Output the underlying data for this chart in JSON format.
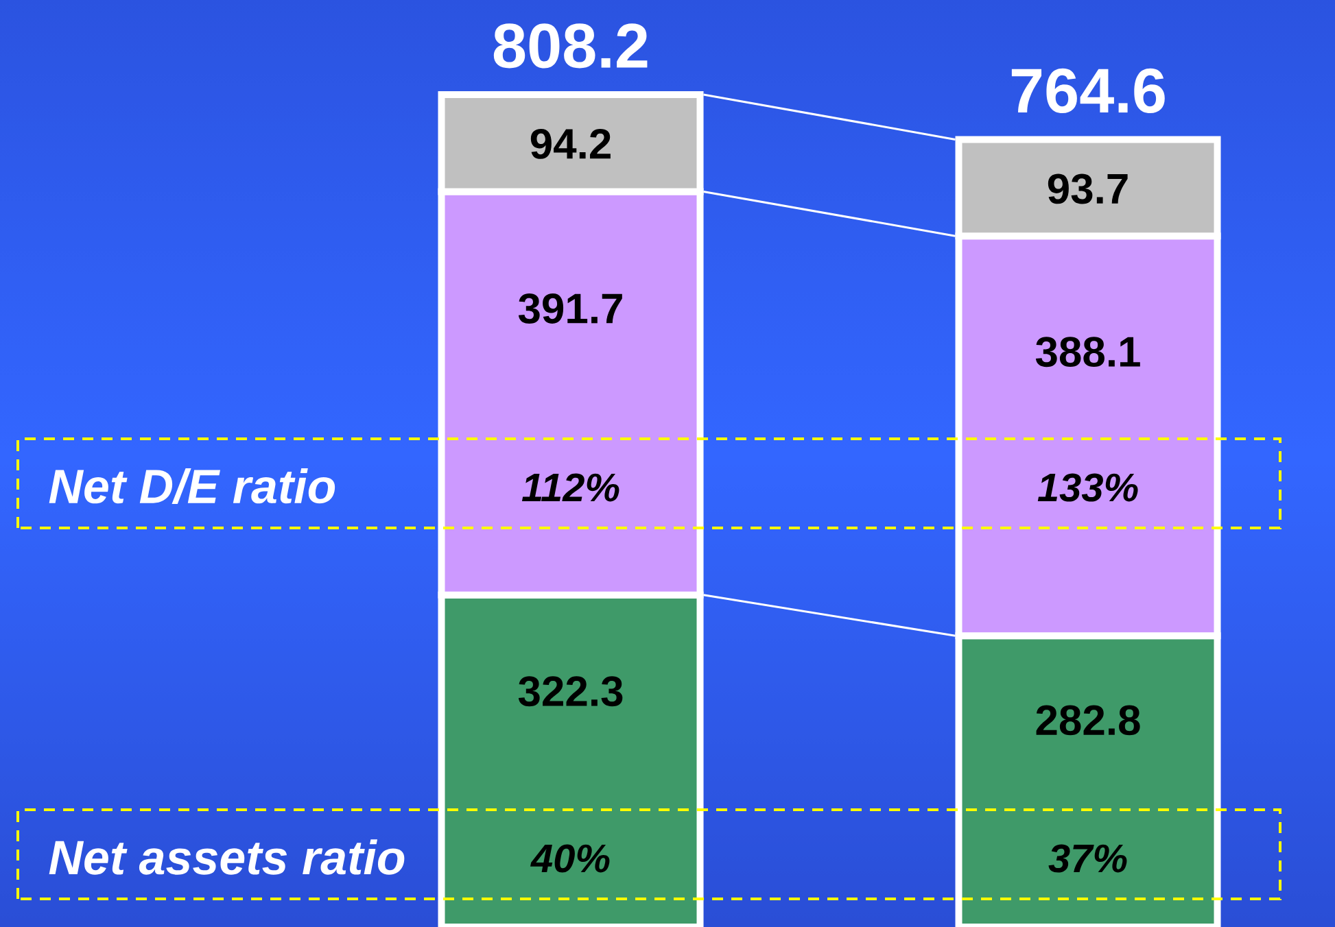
{
  "chart_data": {
    "type": "bar",
    "stacked": true,
    "categories": [
      null,
      null
    ],
    "series": [
      {
        "color": "#3f9a69",
        "values": [
          322.3,
          282.8
        ]
      },
      {
        "color": "#cc99ff",
        "values": [
          391.7,
          388.1
        ]
      },
      {
        "color": "#c0c0c0",
        "values": [
          94.2,
          93.7
        ]
      }
    ],
    "ylim": [
      0,
      900
    ],
    "tick_labels": false,
    "data_labels": true,
    "totals": [
      "808.2",
      "764.6"
    ],
    "annotations": [
      "Net D/E ratio",
      "112%",
      "133%",
      "Net assets ratio",
      "40%",
      "37%"
    ]
  }
}
